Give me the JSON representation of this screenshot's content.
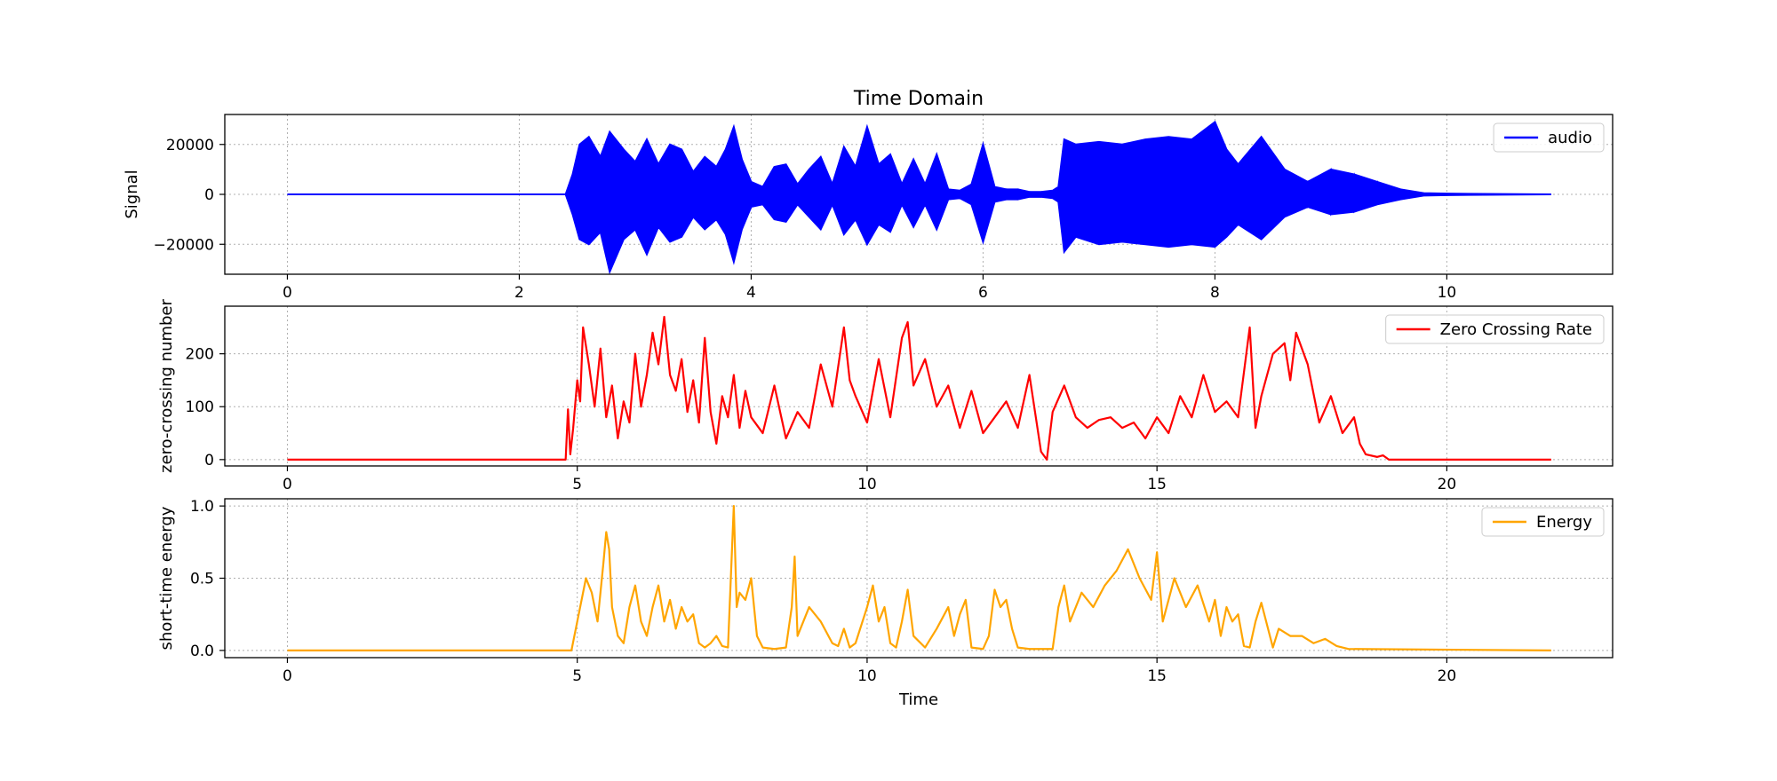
{
  "chart_data": [
    {
      "type": "line",
      "title": "Time Domain",
      "xlabel": "",
      "ylabel": "Signal",
      "xlim": [
        -0.54,
        11.43
      ],
      "ylim": [
        -32000,
        32000
      ],
      "xticks": [
        0,
        2,
        4,
        6,
        8,
        10
      ],
      "yticks": [
        -20000,
        0,
        20000
      ],
      "ytick_labels": [
        "−20000",
        "0",
        "20000"
      ],
      "grid": true,
      "legend_position": "top-right",
      "series": [
        {
          "name": "audio",
          "color": "#0000ff",
          "render": "envelope",
          "envelope": {
            "x": [
              0,
              2.4,
              2.46,
              2.52,
              2.6,
              2.7,
              2.78,
              2.9,
              3.0,
              3.1,
              3.2,
              3.3,
              3.4,
              3.5,
              3.6,
              3.7,
              3.78,
              3.85,
              3.92,
              4.0,
              4.1,
              4.2,
              4.3,
              4.4,
              4.5,
              4.6,
              4.7,
              4.8,
              4.9,
              5.0,
              5.1,
              5.2,
              5.3,
              5.4,
              5.5,
              5.6,
              5.7,
              5.8,
              5.9,
              6.0,
              6.1,
              6.2,
              6.3,
              6.4,
              6.5,
              6.6,
              6.65,
              6.7,
              6.8,
              7.0,
              7.2,
              7.4,
              7.6,
              7.8,
              8.0,
              8.1,
              8.2,
              8.4,
              8.6,
              8.8,
              9.0,
              9.2,
              9.4,
              9.6,
              9.8,
              10.0,
              10.9
            ],
            "upper": [
              0,
              0,
              8000,
              20000,
              23000,
              15000,
              25000,
              18000,
              13000,
              22000,
              12000,
              20000,
              18000,
              9000,
              15000,
              11000,
              18000,
              27000,
              14000,
              5000,
              3000,
              11000,
              12000,
              4000,
              10000,
              15000,
              4000,
              19000,
              11000,
              27000,
              12000,
              16000,
              4000,
              14000,
              4000,
              16000,
              2000,
              1500,
              4000,
              20000,
              3000,
              2000,
              2000,
              1000,
              1000,
              1500,
              3000,
              22000,
              20000,
              21000,
              20000,
              22000,
              23000,
              22000,
              29000,
              18000,
              12000,
              23000,
              10000,
              5000,
              10000,
              8000,
              5000,
              2000,
              500,
              300,
              0
            ],
            "lower": [
              0,
              0,
              -8000,
              -18000,
              -20000,
              -15000,
              -31000,
              -18000,
              -14000,
              -24000,
              -13000,
              -19000,
              -17000,
              -9000,
              -14000,
              -10000,
              -16000,
              -27000,
              -14000,
              -5000,
              -4000,
              -10000,
              -11000,
              -4000,
              -9000,
              -14000,
              -4000,
              -16000,
              -10000,
              -20000,
              -12000,
              -15000,
              -4000,
              -13000,
              -4000,
              -14000,
              -2000,
              -1500,
              -4000,
              -19000,
              -3000,
              -2000,
              -2000,
              -1000,
              -1000,
              -1500,
              -3000,
              -23000,
              -17000,
              -20000,
              -19000,
              -20000,
              -21000,
              -20000,
              -21000,
              -17000,
              -12000,
              -18000,
              -9000,
              -5000,
              -8000,
              -7000,
              -4000,
              -2000,
              -500,
              -300,
              0
            ]
          }
        }
      ]
    },
    {
      "type": "line",
      "title": "",
      "xlabel": "",
      "ylabel": "zero-crossing number",
      "xlim": [
        -1.08,
        22.86
      ],
      "ylim": [
        -12,
        290
      ],
      "xticks": [
        0,
        5,
        10,
        15,
        20
      ],
      "yticks": [
        0,
        100,
        200
      ],
      "grid": true,
      "legend_position": "top-right",
      "series": [
        {
          "name": "Zero Crossing Rate",
          "color": "#ff0000",
          "x": [
            0,
            4.8,
            4.84,
            4.88,
            4.93,
            5.0,
            5.05,
            5.1,
            5.2,
            5.3,
            5.4,
            5.5,
            5.6,
            5.7,
            5.8,
            5.9,
            6.0,
            6.1,
            6.2,
            6.3,
            6.4,
            6.5,
            6.6,
            6.7,
            6.8,
            6.9,
            7.0,
            7.1,
            7.2,
            7.3,
            7.4,
            7.5,
            7.6,
            7.7,
            7.8,
            7.9,
            8.0,
            8.2,
            8.4,
            8.6,
            8.8,
            9.0,
            9.2,
            9.4,
            9.6,
            9.7,
            9.8,
            10.0,
            10.2,
            10.4,
            10.6,
            10.7,
            10.8,
            11.0,
            11.2,
            11.4,
            11.6,
            11.8,
            12.0,
            12.2,
            12.4,
            12.6,
            12.8,
            13.0,
            13.1,
            13.2,
            13.4,
            13.6,
            13.8,
            14.0,
            14.2,
            14.4,
            14.6,
            14.8,
            15.0,
            15.2,
            15.4,
            15.6,
            15.8,
            16.0,
            16.2,
            16.4,
            16.6,
            16.7,
            16.8,
            17.0,
            17.2,
            17.3,
            17.4,
            17.6,
            17.8,
            18.0,
            18.2,
            18.4,
            18.5,
            18.6,
            18.8,
            18.9,
            19.0,
            21.8
          ],
          "values": [
            0,
            0,
            95,
            10,
            60,
            150,
            110,
            250,
            180,
            100,
            210,
            80,
            140,
            40,
            110,
            70,
            200,
            100,
            160,
            240,
            180,
            270,
            160,
            130,
            190,
            90,
            150,
            70,
            230,
            90,
            30,
            120,
            80,
            160,
            60,
            130,
            80,
            50,
            140,
            40,
            90,
            60,
            180,
            100,
            250,
            150,
            120,
            70,
            190,
            80,
            230,
            260,
            140,
            190,
            100,
            140,
            60,
            130,
            50,
            80,
            110,
            60,
            160,
            15,
            0,
            90,
            140,
            80,
            60,
            75,
            80,
            60,
            70,
            40,
            80,
            50,
            120,
            80,
            160,
            90,
            110,
            80,
            250,
            60,
            120,
            200,
            220,
            150,
            240,
            180,
            70,
            120,
            50,
            80,
            30,
            10,
            5,
            8,
            0,
            0
          ]
        }
      ]
    },
    {
      "type": "line",
      "title": "",
      "xlabel": "Time",
      "ylabel": "short-time energy",
      "xlim": [
        -1.08,
        22.86
      ],
      "ylim": [
        -0.05,
        1.05
      ],
      "xticks": [
        0,
        5,
        10,
        15,
        20
      ],
      "yticks": [
        0.0,
        0.5,
        1.0
      ],
      "ytick_labels": [
        "0.0",
        "0.5",
        "1.0"
      ],
      "grid": true,
      "legend_position": "top-right",
      "series": [
        {
          "name": "Energy",
          "color": "#ffa500",
          "x": [
            0,
            4.9,
            4.95,
            5.05,
            5.15,
            5.25,
            5.35,
            5.45,
            5.5,
            5.55,
            5.6,
            5.7,
            5.8,
            5.9,
            6.0,
            6.1,
            6.2,
            6.3,
            6.4,
            6.5,
            6.6,
            6.7,
            6.8,
            6.9,
            7.0,
            7.1,
            7.2,
            7.3,
            7.4,
            7.5,
            7.6,
            7.7,
            7.75,
            7.8,
            7.9,
            8.0,
            8.1,
            8.2,
            8.4,
            8.6,
            8.7,
            8.75,
            8.8,
            8.9,
            9.0,
            9.2,
            9.4,
            9.5,
            9.6,
            9.7,
            9.8,
            10.0,
            10.1,
            10.2,
            10.3,
            10.4,
            10.5,
            10.6,
            10.7,
            10.8,
            11.0,
            11.2,
            11.4,
            11.5,
            11.6,
            11.7,
            11.8,
            12.0,
            12.1,
            12.2,
            12.3,
            12.4,
            12.5,
            12.6,
            12.8,
            13.0,
            13.2,
            13.3,
            13.4,
            13.5,
            13.7,
            13.9,
            14.1,
            14.3,
            14.5,
            14.7,
            14.9,
            15.0,
            15.1,
            15.3,
            15.5,
            15.7,
            15.9,
            16.0,
            16.1,
            16.2,
            16.3,
            16.4,
            16.5,
            16.6,
            16.7,
            16.8,
            17.0,
            17.1,
            17.3,
            17.5,
            17.7,
            17.9,
            18.1,
            18.3,
            21.8
          ],
          "values": [
            0,
            0,
            0.1,
            0.3,
            0.5,
            0.4,
            0.2,
            0.6,
            0.82,
            0.7,
            0.3,
            0.1,
            0.05,
            0.3,
            0.45,
            0.2,
            0.1,
            0.3,
            0.45,
            0.2,
            0.35,
            0.15,
            0.3,
            0.2,
            0.25,
            0.05,
            0.02,
            0.05,
            0.1,
            0.03,
            0.02,
            1.0,
            0.3,
            0.4,
            0.35,
            0.5,
            0.1,
            0.02,
            0.01,
            0.02,
            0.3,
            0.65,
            0.1,
            0.2,
            0.3,
            0.2,
            0.05,
            0.03,
            0.15,
            0.02,
            0.05,
            0.3,
            0.45,
            0.2,
            0.3,
            0.05,
            0.02,
            0.2,
            0.42,
            0.1,
            0.02,
            0.15,
            0.3,
            0.1,
            0.25,
            0.35,
            0.02,
            0.01,
            0.1,
            0.42,
            0.3,
            0.35,
            0.15,
            0.02,
            0.01,
            0.01,
            0.01,
            0.3,
            0.45,
            0.2,
            0.4,
            0.3,
            0.45,
            0.55,
            0.7,
            0.5,
            0.35,
            0.68,
            0.2,
            0.5,
            0.3,
            0.45,
            0.2,
            0.35,
            0.1,
            0.3,
            0.2,
            0.25,
            0.03,
            0.02,
            0.2,
            0.33,
            0.02,
            0.15,
            0.1,
            0.1,
            0.05,
            0.08,
            0.03,
            0.01,
            0
          ]
        }
      ]
    }
  ]
}
